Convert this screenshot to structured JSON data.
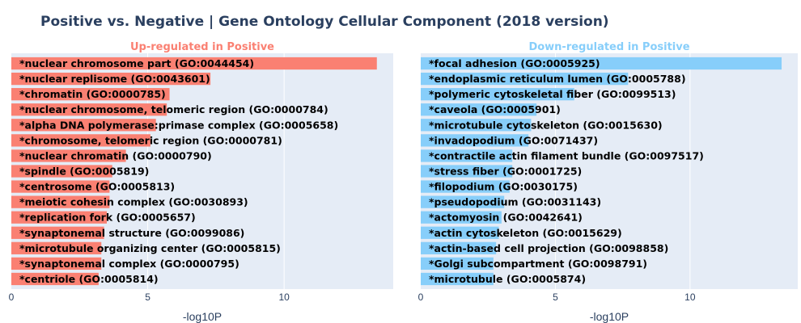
{
  "colors": {
    "left_bar": "#fa8072",
    "right_bar": "#87cefa",
    "plot_bg": "#e5ecf6",
    "grid": "#ffffff",
    "title": "#2a3f5f"
  },
  "chart_data": {
    "title": "Positive vs. Negative | Gene Ontology Cellular Component (2018 version)",
    "type": "bar",
    "orientation": "horizontal",
    "grid": true,
    "panels": [
      {
        "subtitle": "Up-regulated in Positive",
        "xlabel": "-log10P",
        "xlim": [
          0,
          14
        ],
        "xticks": [
          0,
          5,
          10
        ],
        "color": "#fa8072",
        "categories": [
          "*nuclear chromosome part (GO:0044454)",
          "*nuclear replisome (GO:0043601)",
          "*chromatin (GO:0000785)",
          "*nuclear chromosome, telomeric region (GO:0000784)",
          "*alpha DNA polymerase:primase complex (GO:0005658)",
          "*chromosome, telomeric region (GO:0000781)",
          "*nuclear chromatin (GO:0000790)",
          "*spindle (GO:0005819)",
          "*centrosome (GO:0005813)",
          "*meiotic cohesin complex (GO:0030893)",
          "*replication fork (GO:0005657)",
          "*synaptonemal structure (GO:0099086)",
          "*microtubule organizing center (GO:0005815)",
          "*synaptonemal complex (GO:0000795)",
          "*centriole (GO:0005814)"
        ],
        "values": [
          13.4,
          7.3,
          5.8,
          5.7,
          5.3,
          5.1,
          4.2,
          3.7,
          3.6,
          3.6,
          3.5,
          3.4,
          3.3,
          3.3,
          3.2
        ]
      },
      {
        "subtitle": "Down-regulated in Positive",
        "xlabel": "-log10P",
        "xlim": [
          0,
          14
        ],
        "xticks": [
          0,
          5,
          10
        ],
        "color": "#87cefa",
        "categories": [
          "*focal adhesion (GO:0005925)",
          "*endoplasmic reticulum lumen (GO:0005788)",
          "*polymeric cytoskeletal fiber (GO:0099513)",
          "*caveola (GO:0005901)",
          "*microtubule cytoskeleton (GO:0015630)",
          "*invadopodium (GO:0071437)",
          "*contractile actin filament bundle (GO:0097517)",
          "*stress fiber (GO:0001725)",
          "*filopodium (GO:0030175)",
          "*pseudopodium (GO:0031143)",
          "*actomyosin (GO:0042641)",
          "*actin cytoskeleton (GO:0015629)",
          "*actin-based cell projection (GO:0098858)",
          "*Golgi subcompartment (GO:0098791)",
          "*microtubule (GO:0005874)"
        ],
        "values": [
          13.4,
          7.7,
          5.7,
          4.3,
          4.1,
          4.0,
          3.4,
          3.4,
          3.3,
          3.1,
          3.0,
          2.9,
          2.8,
          2.7,
          2.7
        ]
      }
    ]
  }
}
